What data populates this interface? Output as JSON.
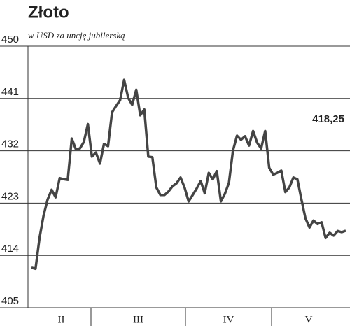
{
  "chart_data": {
    "type": "line",
    "title": "Złoto",
    "subtitle": "w USD za uncję jubilerską",
    "annotation": "418,25",
    "x_labels": [
      "II",
      "III",
      "IV",
      "V"
    ],
    "ylim": [
      405,
      450
    ],
    "yticks": [
      405,
      414,
      423,
      432,
      441,
      450
    ],
    "grid": true,
    "series": [
      {
        "name": "Złoto",
        "color": "#444444",
        "values": [
          411.9,
          411.7,
          417.0,
          420.9,
          423.6,
          425.3,
          424.0,
          427.3,
          427.1,
          427.0,
          434.1,
          432.3,
          432.4,
          433.5,
          436.6,
          431.0,
          431.7,
          429.8,
          433.2,
          432.8,
          438.6,
          439.7,
          440.7,
          444.2,
          441.1,
          439.9,
          442.5,
          438.1,
          439.1,
          431.0,
          430.9,
          425.7,
          424.4,
          424.4,
          425.0,
          425.9,
          426.4,
          427.4,
          425.7,
          423.3,
          424.4,
          425.5,
          426.8,
          424.7,
          428.2,
          427.1,
          428.5,
          423.3,
          424.6,
          426.5,
          432.0,
          434.6,
          433.9,
          434.5,
          432.9,
          435.4,
          433.4,
          432.4,
          435.4,
          429.1,
          427.9,
          428.2,
          428.6,
          424.9,
          425.7,
          427.4,
          427.1,
          423.6,
          420.4,
          418.8,
          420.0,
          419.4,
          419.7,
          417.0,
          417.9,
          417.4,
          418.2,
          418.0,
          418.25
        ]
      }
    ]
  }
}
